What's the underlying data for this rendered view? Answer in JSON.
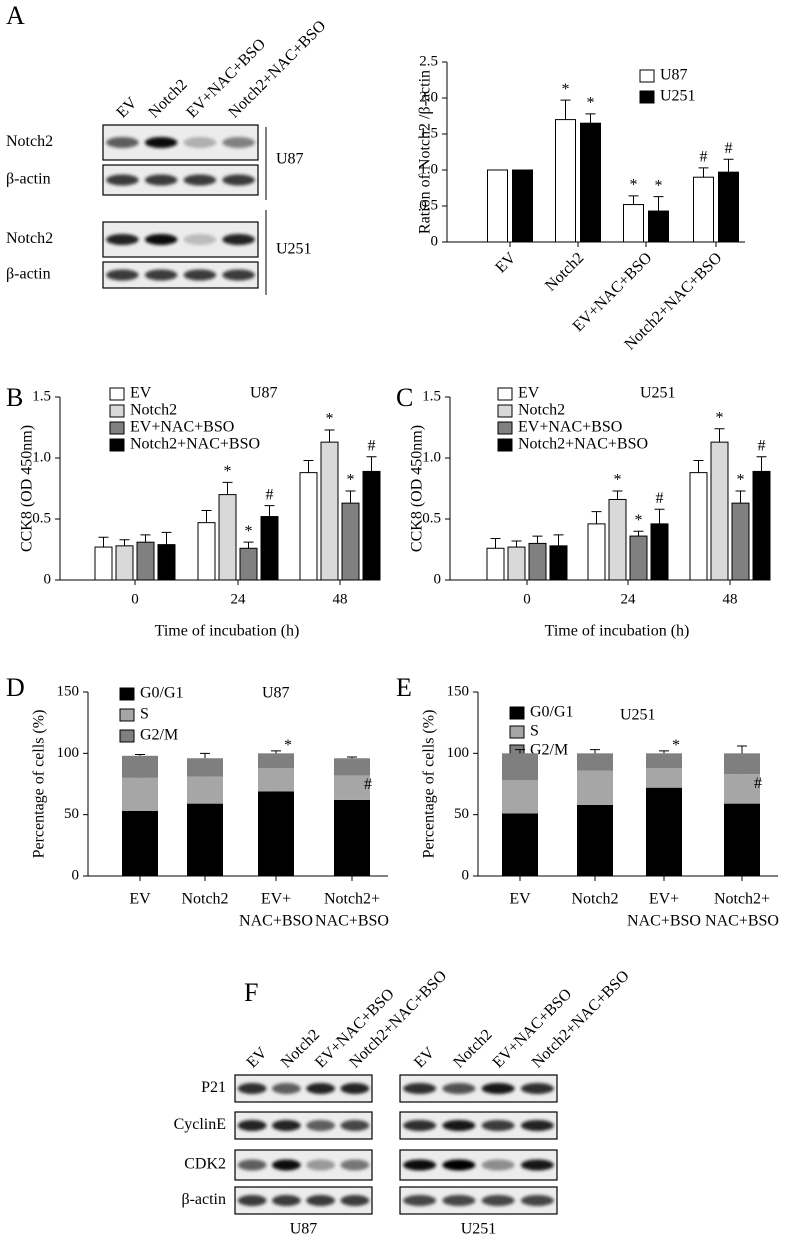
{
  "panel_labels": [
    "A",
    "B",
    "C",
    "D",
    "E",
    "F"
  ],
  "blots": {
    "A": {
      "lanes": [
        "EV",
        "Notch2",
        "EV+NAC+BSO",
        "Notch2+NAC+BSO"
      ],
      "groups": [
        {
          "name": "U87",
          "rows": [
            "Notch2",
            "β-actin"
          ]
        },
        {
          "name": "U251",
          "rows": [
            "Notch2",
            "β-actin"
          ]
        }
      ]
    },
    "F": {
      "lanes": [
        "EV",
        "Notch2",
        "EV+NAC+BSO",
        "Notch2+NAC+BSO"
      ],
      "rows": [
        "P21",
        "CyclinE",
        "CDK2",
        "β-actin"
      ],
      "groups": [
        "U87",
        "U251"
      ]
    }
  },
  "chart_data": [
    {
      "type": "bar",
      "ylabel": "Ration of  Notch2 /β-actin",
      "categories": [
        "EV",
        "Notch2",
        "EV+NAC+BSO",
        "Notch2+NAC+BSO"
      ],
      "series": [
        {
          "name": "U87",
          "color": "#ffffff",
          "values": [
            1.0,
            1.7,
            0.52,
            0.9
          ],
          "errors": [
            0,
            0.27,
            0.12,
            0.13
          ],
          "markers": [
            null,
            "*",
            "*",
            "#"
          ]
        },
        {
          "name": "U251",
          "color": "#000000",
          "values": [
            1.0,
            1.65,
            0.43,
            0.97
          ],
          "errors": [
            0,
            0.13,
            0.2,
            0.18
          ],
          "markers": [
            null,
            "*",
            "*",
            "#"
          ]
        }
      ],
      "ylim": [
        0,
        2.5
      ],
      "yticks": [
        0,
        0.5,
        {
          "value": 1,
          "label": "1.0"
        },
        1.5,
        {
          "value": 2,
          "label": "2.0"
        },
        2.5
      ]
    },
    {
      "type": "bar",
      "subtitle": "U87",
      "ylabel": "CCK8 (OD 450nm)",
      "xlabel": "Time of incubation (h)",
      "categories": [
        "0",
        "24",
        "48"
      ],
      "series": [
        {
          "name": "EV",
          "color": "#ffffff",
          "values": [
            0.27,
            0.47,
            0.88
          ],
          "errors": [
            0.08,
            0.1,
            0.1
          ],
          "markers": [
            null,
            null,
            null
          ]
        },
        {
          "name": "Notch2",
          "color": "#d9d9d9",
          "values": [
            0.28,
            0.7,
            1.13
          ],
          "errors": [
            0.05,
            0.1,
            0.1
          ],
          "markers": [
            null,
            "*",
            "*"
          ]
        },
        {
          "name": "EV+NAC+BSO",
          "color": "#808080",
          "values": [
            0.31,
            0.26,
            0.63
          ],
          "errors": [
            0.06,
            0.05,
            0.1
          ],
          "markers": [
            null,
            "*",
            "*"
          ]
        },
        {
          "name": "Notch2+NAC+BSO",
          "color": "#000000",
          "values": [
            0.29,
            0.52,
            0.89
          ],
          "errors": [
            0.1,
            0.09,
            0.12
          ],
          "markers": [
            null,
            "#",
            "#"
          ]
        }
      ],
      "ylim": [
        0,
        1.5
      ],
      "yticks": [
        0,
        0.5,
        {
          "value": 1,
          "label": "1.0"
        },
        1.5
      ]
    },
    {
      "type": "bar",
      "subtitle": "U251",
      "ylabel": "CCK8 (OD 450nm)",
      "xlabel": "Time of incubation (h)",
      "categories": [
        "0",
        "24",
        "48"
      ],
      "series": [
        {
          "name": "EV",
          "color": "#ffffff",
          "values": [
            0.26,
            0.46,
            0.88
          ],
          "errors": [
            0.08,
            0.1,
            0.1
          ],
          "markers": [
            null,
            null,
            null
          ]
        },
        {
          "name": "Notch2",
          "color": "#d9d9d9",
          "values": [
            0.27,
            0.66,
            1.13
          ],
          "errors": [
            0.05,
            0.07,
            0.11
          ],
          "markers": [
            null,
            "*",
            "*"
          ]
        },
        {
          "name": "EV+NAC+BSO",
          "color": "#808080",
          "values": [
            0.3,
            0.36,
            0.63
          ],
          "errors": [
            0.06,
            0.04,
            0.1
          ],
          "markers": [
            null,
            "*",
            "*"
          ]
        },
        {
          "name": "Notch2+NAC+BSO",
          "color": "#000000",
          "values": [
            0.28,
            0.46,
            0.89
          ],
          "errors": [
            0.09,
            0.12,
            0.12
          ],
          "markers": [
            null,
            "#",
            "#"
          ]
        }
      ],
      "ylim": [
        0,
        1.5
      ],
      "yticks": [
        0,
        0.5,
        {
          "value": 1,
          "label": "1.0"
        },
        1.5
      ]
    },
    {
      "type": "stacked_bar",
      "subtitle": "U87",
      "ylabel": "Percentage of cells (%)",
      "categories": [
        [
          "EV"
        ],
        [
          "Notch2"
        ],
        [
          "EV+",
          "NAC+BSO"
        ],
        [
          "Notch2+",
          "NAC+BSO"
        ]
      ],
      "series": [
        {
          "name": "G0/G1",
          "color": "#000000",
          "values": [
            53,
            59,
            69,
            62
          ],
          "errors": [
            2,
            6,
            2,
            2
          ],
          "markers": [
            null,
            null,
            "*",
            null
          ]
        },
        {
          "name": "S",
          "color": "#a6a6a6",
          "values": [
            27,
            22,
            19,
            20
          ],
          "errors": [
            1,
            3,
            1,
            2
          ],
          "markers": [
            null,
            null,
            "*",
            "#"
          ]
        },
        {
          "name": "G2/M",
          "color": "#7f7f7f",
          "values": [
            18,
            15,
            12,
            14
          ],
          "errors": [
            1,
            4,
            2,
            1
          ],
          "markers": [
            null,
            null,
            "*",
            null
          ]
        }
      ],
      "ylim": [
        0,
        150
      ],
      "yticks": [
        0,
        50,
        100,
        150
      ]
    },
    {
      "type": "stacked_bar",
      "subtitle": "U251",
      "ylabel": "Percentage of cells (%)",
      "categories": [
        [
          "EV"
        ],
        [
          "Notch2"
        ],
        [
          "EV+",
          "NAC+BSO"
        ],
        [
          "Notch2+",
          "NAC+BSO"
        ]
      ],
      "series": [
        {
          "name": "G0/G1",
          "color": "#000000",
          "values": [
            51,
            58,
            72,
            59
          ],
          "errors": [
            3,
            2,
            2,
            3
          ],
          "markers": [
            null,
            null,
            "*",
            null
          ]
        },
        {
          "name": "S",
          "color": "#a6a6a6",
          "values": [
            27,
            28,
            16,
            24
          ],
          "errors": [
            1,
            1,
            1,
            2
          ],
          "markers": [
            null,
            null,
            "*",
            "#"
          ]
        },
        {
          "name": "G2/M",
          "color": "#7f7f7f",
          "values": [
            22,
            14,
            12,
            17
          ],
          "errors": [
            3,
            3,
            2,
            6
          ],
          "markers": [
            null,
            null,
            "*",
            null
          ]
        }
      ],
      "ylim": [
        0,
        150
      ],
      "yticks": [
        0,
        50,
        100,
        150
      ]
    }
  ]
}
